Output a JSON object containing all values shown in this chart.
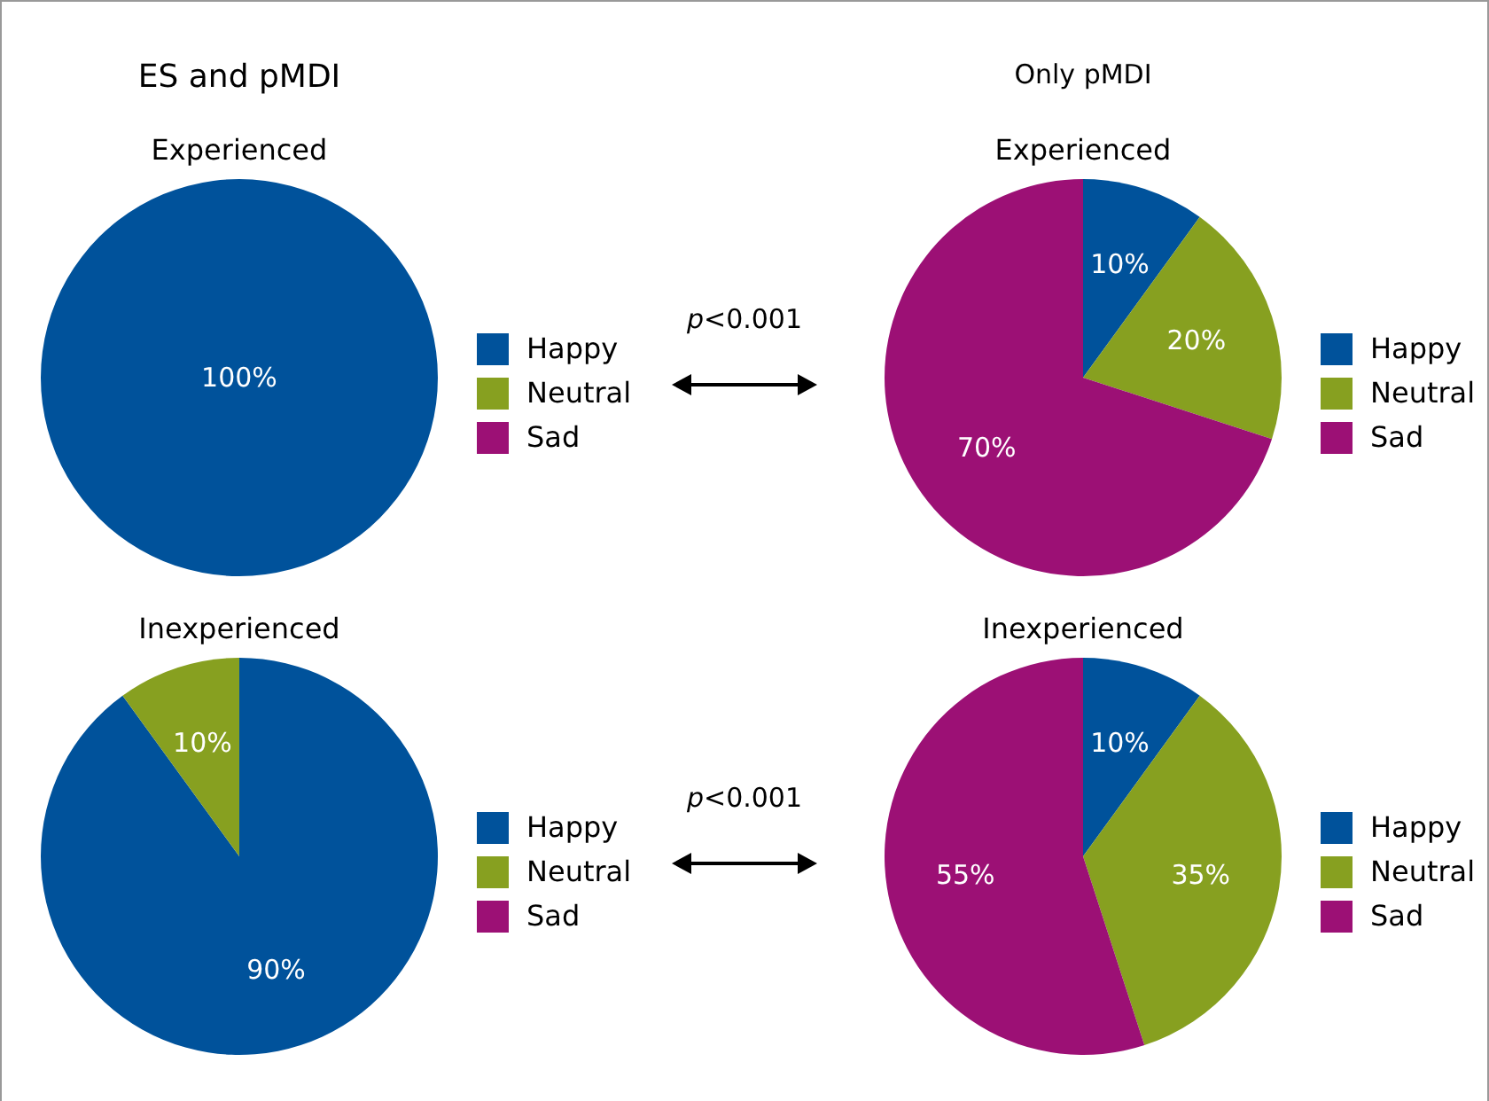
{
  "chart_data": [
    {
      "type": "pie",
      "title": "ES and pMDI",
      "subtitle": "Experienced",
      "categories": [
        "Happy",
        "Neutral",
        "Sad"
      ],
      "values": [
        100,
        0,
        0
      ],
      "colors": [
        "#00529b",
        "#87a020",
        "#9c1075"
      ],
      "value_labels": [
        "100%",
        null,
        null
      ],
      "legend": "right",
      "annotations": [
        "p<0.001"
      ]
    },
    {
      "type": "pie",
      "title": "Only pMDI",
      "subtitle": "Experienced",
      "categories": [
        "Happy",
        "Neutral",
        "Sad"
      ],
      "values": [
        10,
        20,
        70
      ],
      "colors": [
        "#00529b",
        "#87a020",
        "#9c1075"
      ],
      "value_labels": [
        "10%",
        "20%",
        "70%"
      ],
      "legend": "right"
    },
    {
      "type": "pie",
      "subtitle": "Inexperienced",
      "categories": [
        "Happy",
        "Neutral",
        "Sad"
      ],
      "values": [
        90,
        10,
        0
      ],
      "colors": [
        "#00529b",
        "#87a020",
        "#9c1075"
      ],
      "value_labels": [
        "90%",
        "10%",
        null
      ],
      "legend": "right",
      "annotations": [
        "p<0.001"
      ]
    },
    {
      "type": "pie",
      "subtitle": "Inexperienced",
      "categories": [
        "Happy",
        "Neutral",
        "Sad"
      ],
      "values": [
        10,
        35,
        55
      ],
      "colors": [
        "#00529b",
        "#87a020",
        "#9c1075"
      ],
      "value_labels": [
        "10%",
        "35%",
        "55%"
      ],
      "legend": "right"
    }
  ]
}
